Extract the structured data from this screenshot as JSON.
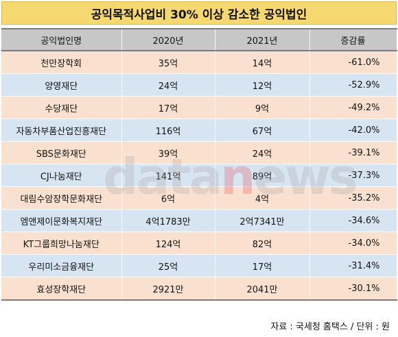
{
  "title": "공익목적사업비 30% 이상 감소한 공익법인",
  "watermark": {
    "part1": "data",
    "accent": "n",
    "part2": "ews"
  },
  "headers": [
    "공익법인명",
    "2020년",
    "2021년",
    "증감률"
  ],
  "rows": [
    [
      "천만장학회",
      "35억",
      "14억",
      "-61.0%"
    ],
    [
      "양영재단",
      "24억",
      "12억",
      "-52.9%"
    ],
    [
      "수당재단",
      "17억",
      "9억",
      "-49.2%"
    ],
    [
      "자동차부품산업진흥재단",
      "116억",
      "67억",
      "-42.0%"
    ],
    [
      "SBS문화재단",
      "39억",
      "24억",
      "-39.1%"
    ],
    [
      "CJ나눔재단",
      "141억",
      "89억",
      "-37.3%"
    ],
    [
      "대림수암장학문화재단",
      "6억",
      "4억",
      "-35.2%"
    ],
    [
      "엠앤제이문화복지재단",
      "4억1783만",
      "2억7341만",
      "-34.6%"
    ],
    [
      "KT그룹희망나눔재단",
      "124억",
      "82억",
      "-34.0%"
    ],
    [
      "우리미소금융재단",
      "25억",
      "17억",
      "-31.4%"
    ],
    [
      "효성장학재단",
      "2921만",
      "2041만",
      "-30.1%"
    ]
  ],
  "source": "자료 : 국세청 홈택스 / 단위 : 원"
}
